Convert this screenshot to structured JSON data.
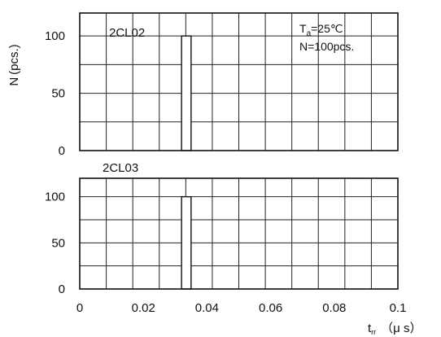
{
  "chart_data": {
    "type": "bar",
    "y_label": "N (pcs.)",
    "x_label_main": "t",
    "x_label_sub": "rr",
    "x_label_unit": "（μ s）",
    "x_ticks": [
      "0",
      "0.02",
      "0.04",
      "0.06",
      "0.08",
      "0.1"
    ],
    "xlim": [
      0,
      0.1
    ],
    "conditions": {
      "ta_main": "T",
      "ta_sub": "a",
      "ta_value": "=25℃",
      "count": "N=100pcs."
    },
    "panels": [
      {
        "name": "2CL02",
        "y_ticks": [
          "0",
          "50",
          "100"
        ],
        "ylim": [
          0,
          120
        ],
        "bars": [
          {
            "x_start": 0.032,
            "x_end": 0.035,
            "value": 100
          }
        ]
      },
      {
        "name": "2CL03",
        "y_ticks": [
          "0",
          "50",
          "100"
        ],
        "ylim": [
          0,
          120
        ],
        "bars": [
          {
            "x_start": 0.032,
            "x_end": 0.035,
            "value": 100
          }
        ]
      }
    ],
    "grid": true
  }
}
